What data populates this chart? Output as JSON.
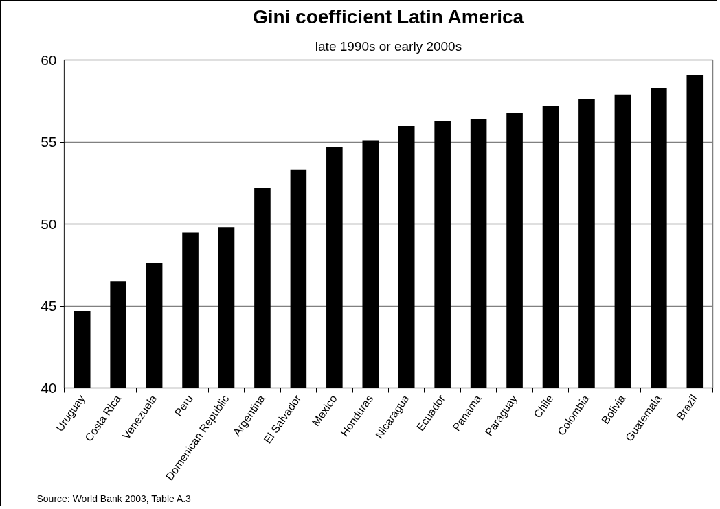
{
  "chart_data": {
    "type": "bar",
    "title": "Gini coefficient Latin America",
    "subtitle": "late 1990s or early 2000s",
    "categories": [
      "Uruguay",
      "Costa Rica",
      "Venezuela",
      "Peru",
      "Domenican Republic",
      "Argentina",
      "El Salvador",
      "Mexico",
      "Honduras",
      "Nicaragua",
      "Ecuador",
      "Panama",
      "Paraguay",
      "Chile",
      "Colombia",
      "Bolivia",
      "Guatemala",
      "Brazil"
    ],
    "values": [
      44.7,
      46.5,
      47.6,
      49.5,
      49.8,
      52.2,
      53.3,
      54.7,
      55.1,
      56.0,
      56.3,
      56.4,
      56.8,
      57.2,
      57.6,
      57.9,
      58.3,
      59.1
    ],
    "color": "#000000",
    "ylim": [
      40,
      60
    ],
    "yticks": [
      40,
      45,
      50,
      55,
      60
    ],
    "grid": "y",
    "annotations": [
      "Source: World Bank 2003, Table A.3"
    ]
  }
}
